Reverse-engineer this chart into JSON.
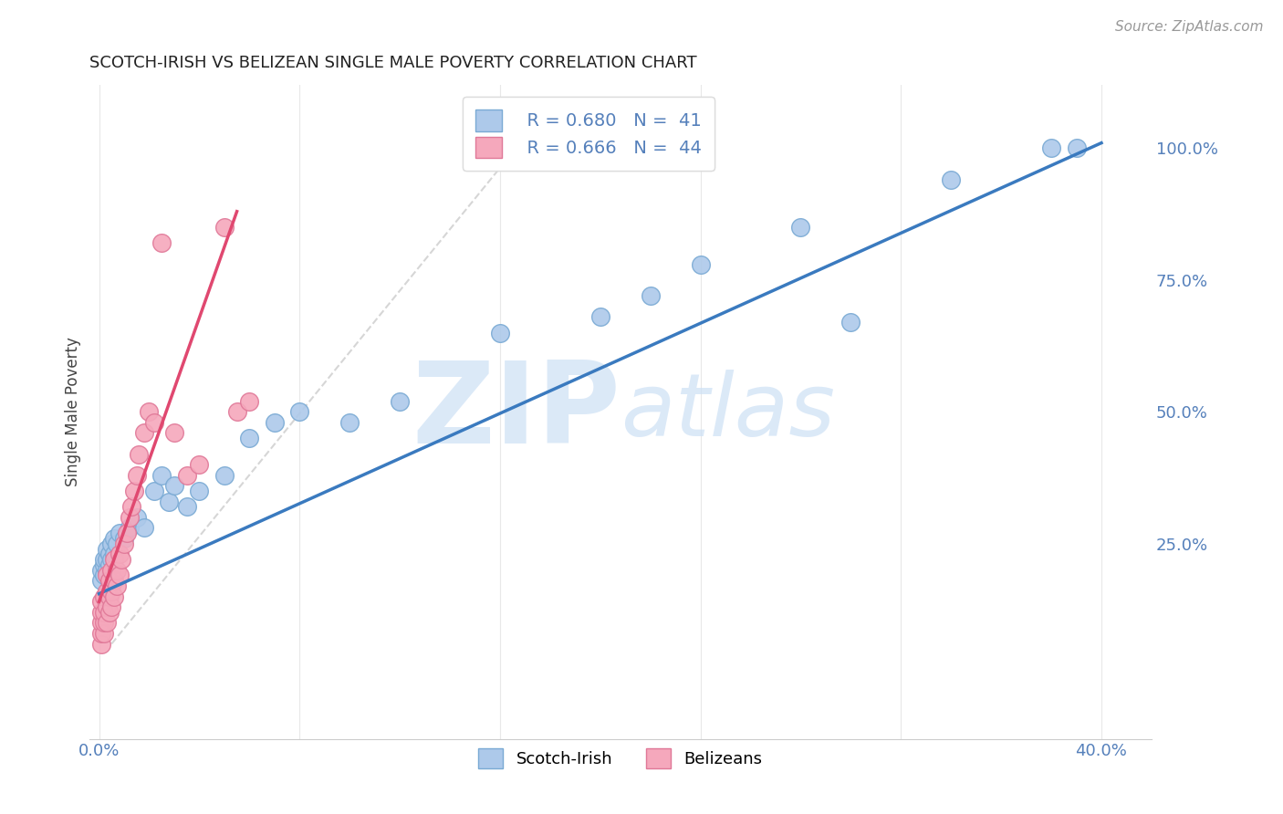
{
  "title": "SCOTCH-IRISH VS BELIZEAN SINGLE MALE POVERTY CORRELATION CHART",
  "source": "Source: ZipAtlas.com",
  "ylabel": "Single Male Poverty",
  "scotch_irish_color": "#adc9ea",
  "scotch_irish_edge": "#7aaad4",
  "belizean_color": "#f5a8bc",
  "belizean_edge": "#e07898",
  "scotch_irish_line_color": "#3a7abf",
  "belizean_line_color": "#e04870",
  "ref_line_color": "#cccccc",
  "watermark_color": "#cce0f5",
  "background_color": "#ffffff",
  "grid_color": "#e8e8e8",
  "tick_color": "#5580bb",
  "title_color": "#222222",
  "ylabel_color": "#444444",
  "source_color": "#999999",
  "xlim": [
    -0.004,
    0.42
  ],
  "ylim": [
    -0.12,
    1.12
  ],
  "x_tick_positions": [
    0.0,
    0.08,
    0.16,
    0.24,
    0.32,
    0.4
  ],
  "x_tick_labels": [
    "0.0%",
    "",
    "",
    "",
    "",
    "40.0%"
  ],
  "y_tick_positions": [
    0.0,
    0.25,
    0.5,
    0.75,
    1.0
  ],
  "y_tick_labels": [
    "",
    "25.0%",
    "50.0%",
    "75.0%",
    "100.0%"
  ],
  "scotch_irish_x": [
    0.001,
    0.001,
    0.002,
    0.002,
    0.002,
    0.003,
    0.003,
    0.003,
    0.004,
    0.004,
    0.005,
    0.005,
    0.006,
    0.006,
    0.007,
    0.008,
    0.01,
    0.012,
    0.015,
    0.018,
    0.022,
    0.025,
    0.028,
    0.03,
    0.035,
    0.04,
    0.05,
    0.06,
    0.07,
    0.08,
    0.1,
    0.12,
    0.16,
    0.2,
    0.22,
    0.24,
    0.28,
    0.3,
    0.34,
    0.38,
    0.39
  ],
  "scotch_irish_y": [
    0.18,
    0.2,
    0.19,
    0.21,
    0.22,
    0.2,
    0.22,
    0.24,
    0.21,
    0.23,
    0.22,
    0.25,
    0.23,
    0.26,
    0.25,
    0.27,
    0.26,
    0.28,
    0.3,
    0.28,
    0.35,
    0.38,
    0.33,
    0.36,
    0.32,
    0.35,
    0.38,
    0.45,
    0.48,
    0.5,
    0.48,
    0.52,
    0.65,
    0.68,
    0.72,
    0.78,
    0.85,
    0.67,
    0.94,
    1.0,
    1.0
  ],
  "belizean_x": [
    0.001,
    0.001,
    0.001,
    0.001,
    0.001,
    0.002,
    0.002,
    0.002,
    0.002,
    0.003,
    0.003,
    0.003,
    0.003,
    0.004,
    0.004,
    0.004,
    0.005,
    0.005,
    0.005,
    0.006,
    0.006,
    0.006,
    0.007,
    0.007,
    0.008,
    0.008,
    0.009,
    0.01,
    0.011,
    0.012,
    0.013,
    0.014,
    0.015,
    0.016,
    0.018,
    0.02,
    0.022,
    0.025,
    0.03,
    0.035,
    0.04,
    0.05,
    0.055,
    0.06
  ],
  "belizean_y": [
    0.06,
    0.08,
    0.1,
    0.12,
    0.14,
    0.08,
    0.1,
    0.12,
    0.15,
    0.1,
    0.13,
    0.16,
    0.19,
    0.12,
    0.15,
    0.18,
    0.13,
    0.16,
    0.2,
    0.15,
    0.18,
    0.22,
    0.17,
    0.2,
    0.19,
    0.23,
    0.22,
    0.25,
    0.27,
    0.3,
    0.32,
    0.35,
    0.38,
    0.42,
    0.46,
    0.5,
    0.48,
    0.82,
    0.46,
    0.38,
    0.4,
    0.85,
    0.5,
    0.52
  ],
  "si_line_x0": 0.0,
  "si_line_y0": 0.155,
  "si_line_x1": 0.4,
  "si_line_y1": 1.01,
  "bel_line_x0": 0.0,
  "bel_line_y0": 0.14,
  "bel_line_x1": 0.055,
  "bel_line_y1": 0.88,
  "ref_line_x0": 0.005,
  "ref_line_y0": 0.06,
  "ref_line_x1": 0.175,
  "ref_line_y1": 1.05
}
